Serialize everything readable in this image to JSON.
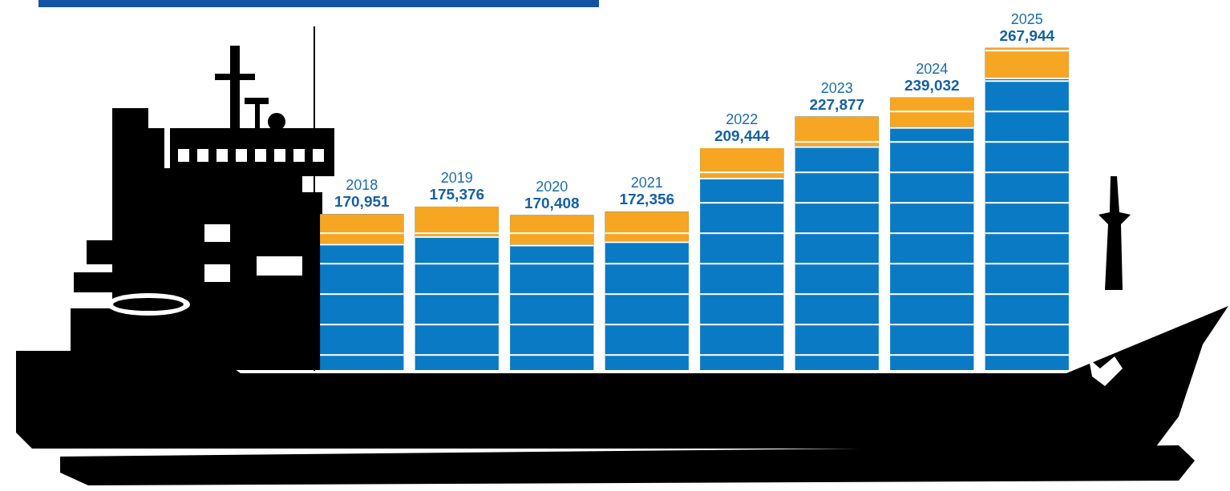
{
  "chart_data": {
    "type": "bar",
    "categories": [
      "2018",
      "2019",
      "2020",
      "2021",
      "2022",
      "2023",
      "2024",
      "2025"
    ],
    "values": [
      170951,
      175376,
      170408,
      172356,
      209444,
      227877,
      239032,
      267944
    ],
    "value_labels": [
      "170,951",
      "175,376",
      "170,408",
      "172,356",
      "209,444",
      "227,877",
      "239,032",
      "267,944"
    ],
    "color": "#0a7ac4",
    "ylim": [
      80000,
      280000
    ],
    "data_labels": true,
    "tick_labels": false,
    "grid": false
  }
}
